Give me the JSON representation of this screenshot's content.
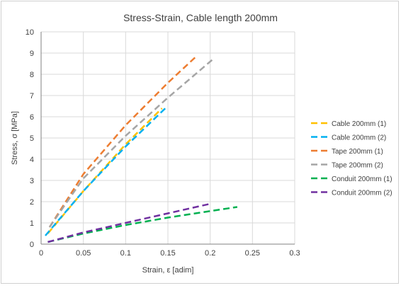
{
  "chart_data": {
    "type": "line",
    "title": "Stress-Strain, Cable length 200mm",
    "xlabel": "Strain, ε [adim]",
    "ylabel": "Stress, σ [MPa]",
    "xlim": [
      0,
      0.3
    ],
    "ylim": [
      0,
      10
    ],
    "xticks": [
      "0",
      "0.05",
      "0.1",
      "0.15",
      "0.2",
      "0.25",
      "0.3"
    ],
    "yticks": [
      "0",
      "1",
      "2",
      "3",
      "4",
      "5",
      "6",
      "7",
      "8",
      "9",
      "10"
    ],
    "grid": true,
    "legend_position": "right",
    "series": [
      {
        "name": "Cable 200mm (1)",
        "color": "#FFC000",
        "x": [
          0.008,
          0.05,
          0.1,
          0.143
        ],
        "y": [
          0.5,
          2.5,
          4.7,
          6.4
        ]
      },
      {
        "name": "Cable 200mm (2)",
        "color": "#00B0F0",
        "x": [
          0.005,
          0.05,
          0.1,
          0.147
        ],
        "y": [
          0.4,
          2.5,
          4.6,
          6.4
        ]
      },
      {
        "name": "Tape 200mm (1)",
        "color": "#ED7D31",
        "x": [
          0.01,
          0.05,
          0.1,
          0.15,
          0.185
        ],
        "y": [
          0.8,
          3.3,
          5.6,
          7.6,
          8.9
        ]
      },
      {
        "name": "Tape 200mm (2)",
        "color": "#A5A5A5",
        "x": [
          0.01,
          0.05,
          0.1,
          0.15,
          0.203
        ],
        "y": [
          0.8,
          3.1,
          5.1,
          6.9,
          8.7
        ]
      },
      {
        "name": "Conduit 200mm (1)",
        "color": "#00B050",
        "x": [
          0.008,
          0.05,
          0.1,
          0.15,
          0.232
        ],
        "y": [
          0.1,
          0.5,
          0.9,
          1.25,
          1.75
        ]
      },
      {
        "name": "Conduit 200mm (2)",
        "color": "#7030A0",
        "x": [
          0.008,
          0.05,
          0.1,
          0.15,
          0.2
        ],
        "y": [
          0.1,
          0.55,
          1.0,
          1.45,
          1.9
        ]
      }
    ]
  }
}
